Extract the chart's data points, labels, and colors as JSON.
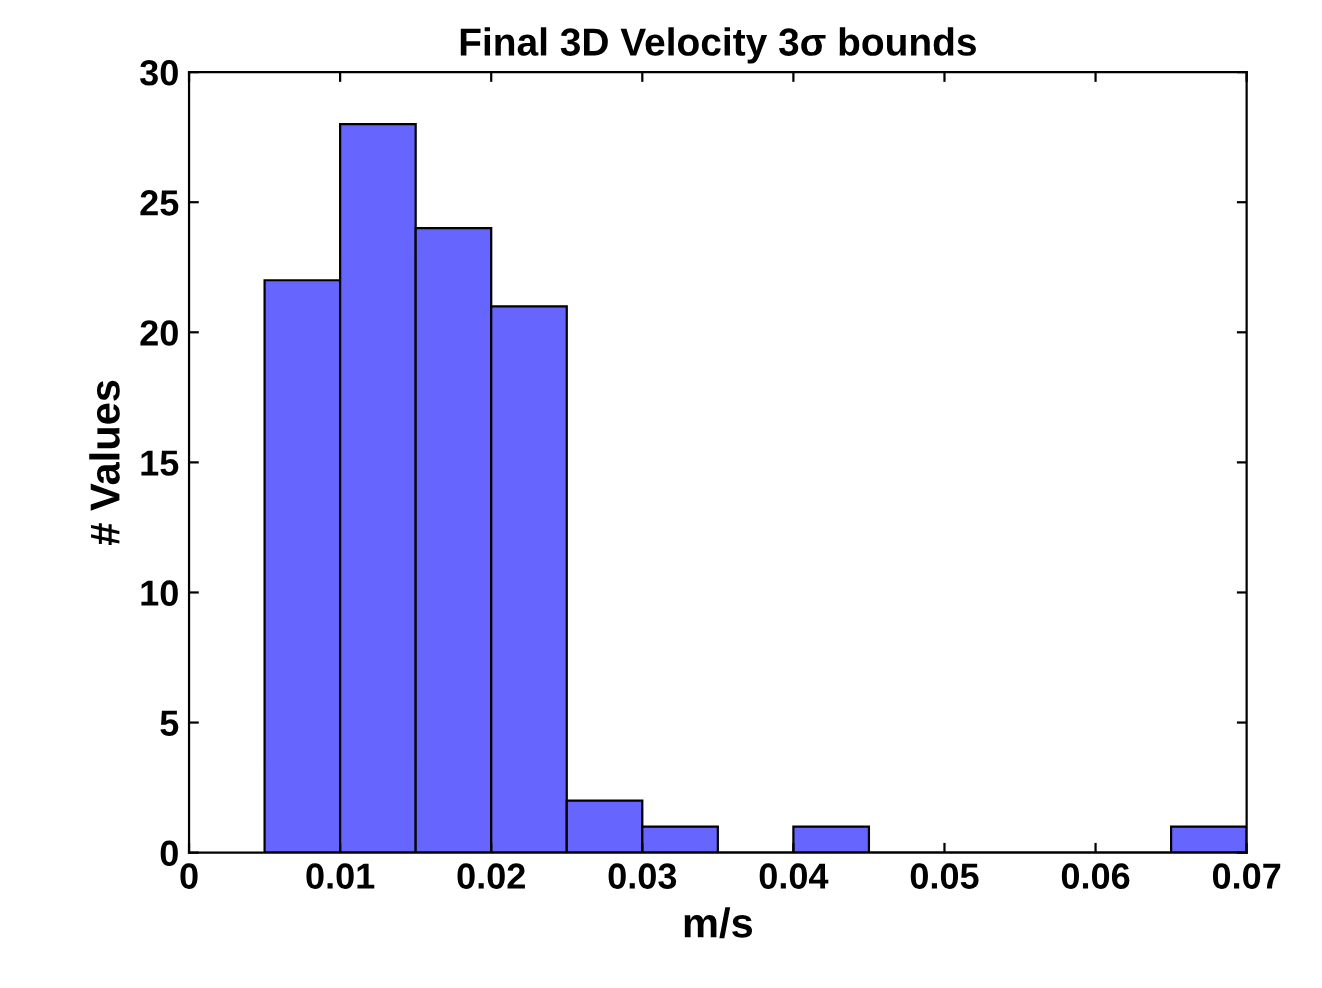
{
  "chart_data": {
    "type": "histogram",
    "title": "Final 3D Velocity 3σ bounds",
    "xlabel": "m/s",
    "ylabel": "# Values",
    "bins": [
      0.005,
      0.01,
      0.015,
      0.02,
      0.025,
      0.03,
      0.035,
      0.04,
      0.045,
      0.05,
      0.055,
      0.06,
      0.065,
      0.07
    ],
    "values": [
      22,
      28,
      24,
      21,
      2,
      1,
      0,
      1,
      0,
      0,
      0,
      0,
      1
    ],
    "color": "#6666ff",
    "xlim": [
      0,
      0.07
    ],
    "xticks": [
      0,
      0.01,
      0.02,
      0.03,
      0.04,
      0.05,
      0.06,
      0.07
    ],
    "ylim": [
      0,
      30
    ],
    "yticks": [
      0,
      5,
      10,
      15,
      20,
      25,
      30
    ],
    "grid": false,
    "legend": false
  }
}
